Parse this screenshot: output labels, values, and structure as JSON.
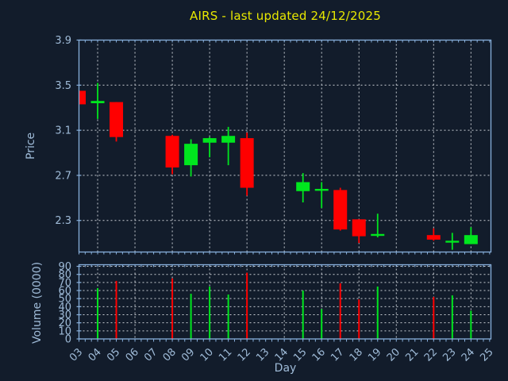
{
  "title": "AIRS - last updated 24/12/2025",
  "colors": {
    "background": "#121c2b",
    "axis": "#88b0dc",
    "tick_label": "#9fbbd8",
    "grid": "#c7ccd2",
    "title": "#e8e800",
    "up": "#00e61e",
    "down": "#ff0000"
  },
  "chart_data": [
    {
      "type": "candlestick",
      "title": "AIRS - last updated 24/12/2025",
      "xlabel": "Day",
      "ylabel": "Price",
      "xlim": [
        3,
        25.07
      ],
      "ylim": [
        2.02,
        3.9
      ],
      "y_ticks": [
        3.9,
        3.5,
        3.1,
        2.7,
        2.3
      ],
      "x_tick_labels": [
        "03",
        "04",
        "05",
        "06",
        "07",
        "08",
        "09",
        "10",
        "11",
        "12",
        "13",
        "14",
        "15",
        "16",
        "17",
        "18",
        "19",
        "20",
        "21",
        "22",
        "23",
        "24",
        "25"
      ],
      "grid": "dashed, horizontal at y_ticks, vertical at even days",
      "legend": "none",
      "candles": [
        {
          "day": 3,
          "open": 3.45,
          "high": 3.45,
          "low": 3.33,
          "close": 3.33
        },
        {
          "day": 4,
          "open": 3.34,
          "high": 3.52,
          "low": 3.2,
          "close": 3.36
        },
        {
          "day": 5,
          "open": 3.35,
          "high": 3.35,
          "low": 3.0,
          "close": 3.04
        },
        {
          "day": 8,
          "open": 3.05,
          "high": 3.06,
          "low": 2.71,
          "close": 2.77
        },
        {
          "day": 9,
          "open": 2.79,
          "high": 3.02,
          "low": 2.69,
          "close": 2.98
        },
        {
          "day": 10,
          "open": 2.99,
          "high": 3.04,
          "low": 2.86,
          "close": 3.03
        },
        {
          "day": 11,
          "open": 2.99,
          "high": 3.13,
          "low": 2.79,
          "close": 3.05
        },
        {
          "day": 12,
          "open": 3.03,
          "high": 3.08,
          "low": 2.52,
          "close": 2.59
        },
        {
          "day": 15,
          "open": 2.56,
          "high": 2.72,
          "low": 2.46,
          "close": 2.64
        },
        {
          "day": 16,
          "open": 2.57,
          "high": 2.64,
          "low": 2.41,
          "close": 2.58
        },
        {
          "day": 17,
          "open": 2.57,
          "high": 2.59,
          "low": 2.21,
          "close": 2.22
        },
        {
          "day": 18,
          "open": 2.31,
          "high": 2.31,
          "low": 2.1,
          "close": 2.16
        },
        {
          "day": 19,
          "open": 2.17,
          "high": 2.36,
          "low": 2.15,
          "close": 2.18
        },
        {
          "day": 22,
          "open": 2.17,
          "high": 2.23,
          "low": 2.12,
          "close": 2.13
        },
        {
          "day": 23,
          "open": 2.11,
          "high": 2.19,
          "low": 2.04,
          "close": 2.12
        },
        {
          "day": 24,
          "open": 2.09,
          "high": 2.24,
          "low": 2.09,
          "close": 2.17
        }
      ]
    },
    {
      "type": "bar",
      "ylabel": "Volume (0000)",
      "ylim": [
        0,
        92
      ],
      "y_ticks": [
        90,
        80,
        70,
        60,
        50,
        40,
        30,
        20,
        10,
        0
      ],
      "bars": [
        {
          "day": 4,
          "value": 63,
          "dir": "up"
        },
        {
          "day": 5,
          "value": 72,
          "dir": "down"
        },
        {
          "day": 8,
          "value": 75,
          "dir": "down"
        },
        {
          "day": 9,
          "value": 56,
          "dir": "up"
        },
        {
          "day": 10,
          "value": 65,
          "dir": "up"
        },
        {
          "day": 11,
          "value": 55,
          "dir": "up"
        },
        {
          "day": 12,
          "value": 82,
          "dir": "down"
        },
        {
          "day": 15,
          "value": 60,
          "dir": "up"
        },
        {
          "day": 16,
          "value": 37,
          "dir": "up"
        },
        {
          "day": 17,
          "value": 69,
          "dir": "down"
        },
        {
          "day": 18,
          "value": 49,
          "dir": "down"
        },
        {
          "day": 19,
          "value": 65,
          "dir": "up"
        },
        {
          "day": 22,
          "value": 52,
          "dir": "down"
        },
        {
          "day": 23,
          "value": 54,
          "dir": "up"
        },
        {
          "day": 24,
          "value": 35,
          "dir": "up"
        }
      ]
    }
  ]
}
